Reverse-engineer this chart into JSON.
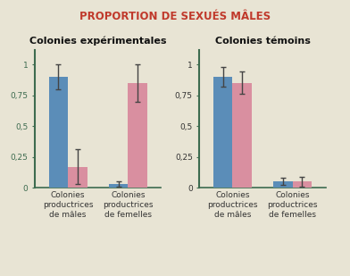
{
  "title": "PROPORTION DE SEXUÉS MÂLES",
  "title_color": "#c0392b",
  "background_color": "#e8e4d4",
  "panel_titles": [
    "Colonies expérimentales",
    "Colonies témoins"
  ],
  "group_labels": [
    [
      "Colonies\nproductrices\nde mâles",
      "Colonies\nproductrices\nde femelles"
    ],
    [
      "Colonies\nproductrices\nde mâles",
      "Colonies\nproductrices\nde femelles"
    ]
  ],
  "bar_values": [
    [
      [
        0.9,
        0.17
      ],
      [
        0.03,
        0.85
      ]
    ],
    [
      [
        0.9,
        0.85
      ],
      [
        0.05,
        0.05
      ]
    ]
  ],
  "bar_errors": [
    [
      [
        0.1,
        0.14
      ],
      [
        0.02,
        0.15
      ]
    ],
    [
      [
        0.08,
        0.09
      ],
      [
        0.03,
        0.04
      ]
    ]
  ],
  "bar_colors": [
    "#5b8db8",
    "#d98fa0"
  ],
  "axis_color": "#3d6b4f",
  "yticks": [
    0,
    0.25,
    0.5,
    0.75,
    1
  ],
  "ytick_labels": [
    "0",
    "0,25",
    "0,5",
    "0,75",
    "1"
  ],
  "ylim": [
    0,
    1.12
  ],
  "bar_width": 0.32,
  "title_fontsize": 8.5,
  "panel_title_fontsize": 8,
  "tick_fontsize": 6.5,
  "xlabel_fontsize": 6.5
}
